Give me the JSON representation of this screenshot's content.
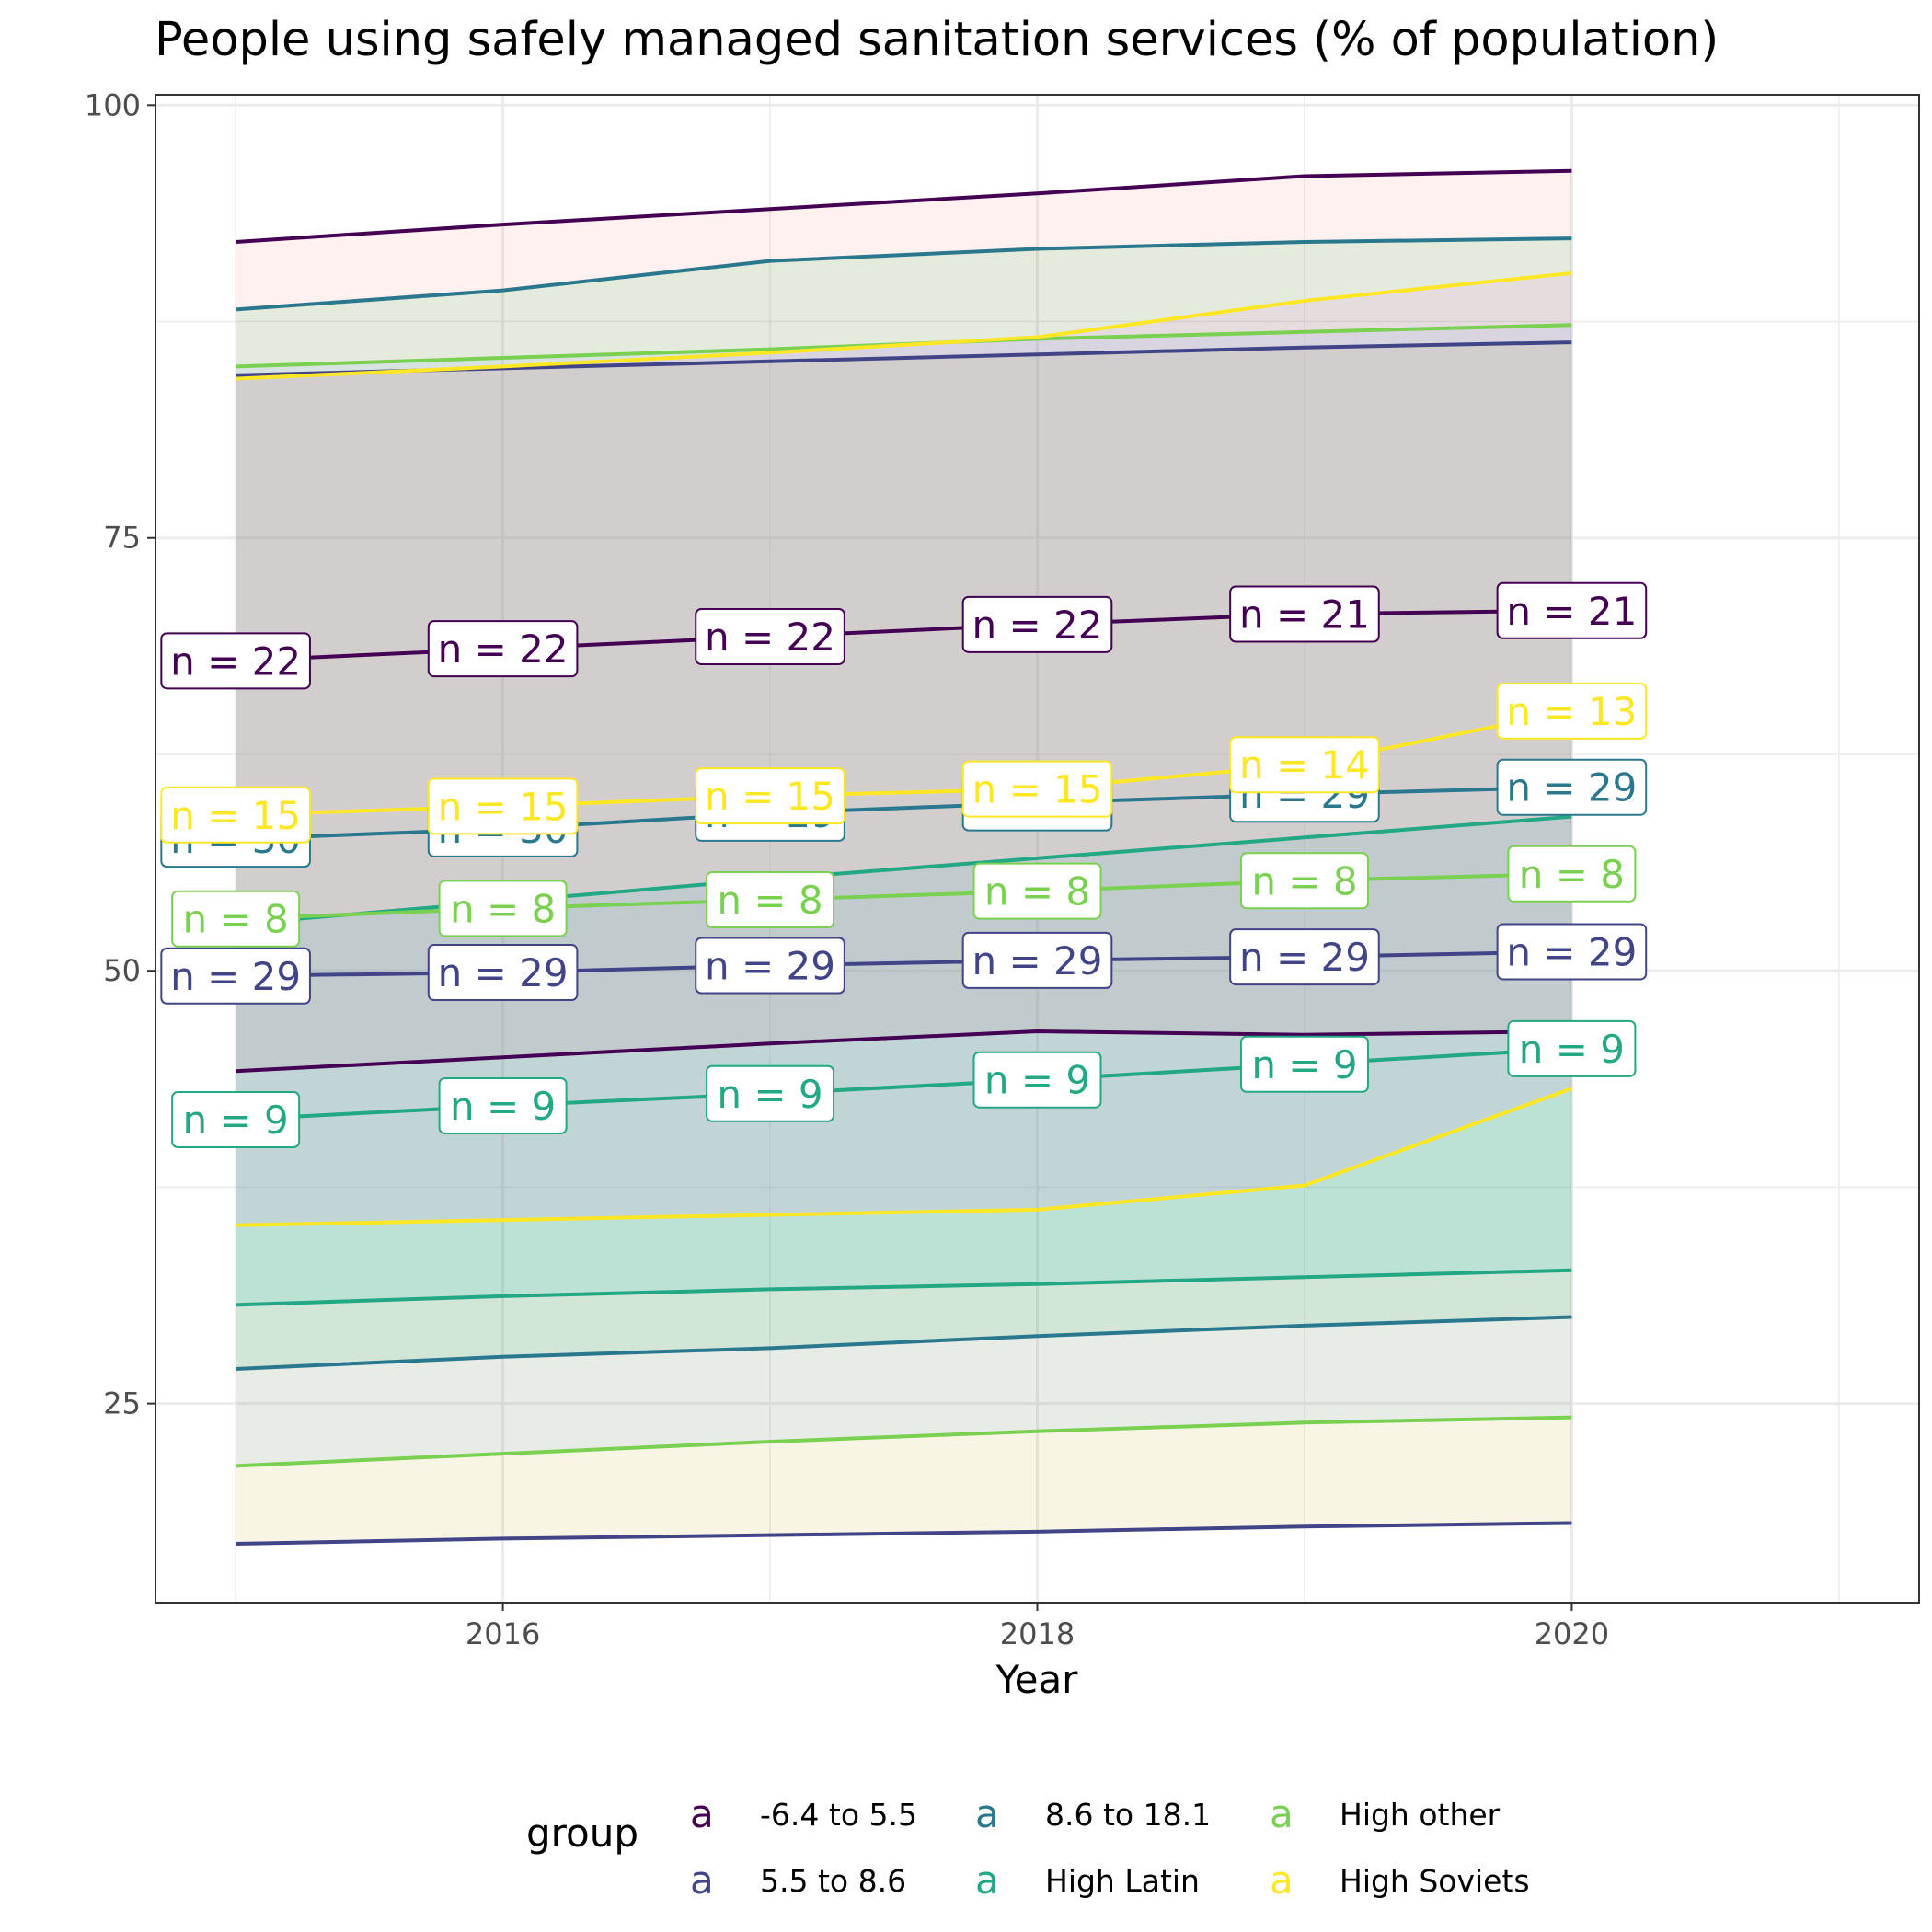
{
  "chart_data": {
    "type": "line",
    "title": "People using safely managed sanitation services (% of population)",
    "xlabel": "Year",
    "ylabel": "",
    "xlim": [
      2014.7,
      2021.3
    ],
    "ylim": [
      13.5,
      100.6
    ],
    "x_ticks": [
      2016,
      2018,
      2020
    ],
    "y_ticks": [
      25,
      50,
      75,
      100
    ],
    "x": [
      2015,
      2016,
      2017,
      2018,
      2019,
      2020
    ],
    "grid": true,
    "legend": {
      "title": "group",
      "position": "bottom",
      "key_glyph": "a"
    },
    "series": [
      {
        "name": "-6.4 to 5.5",
        "color": "#440154",
        "upper": [
          92.1,
          93.1,
          94.0,
          94.9,
          95.9,
          96.2
        ],
        "lower": [
          44.2,
          45.0,
          45.8,
          46.5,
          46.3,
          46.5
        ],
        "median": [
          67.9,
          68.6,
          69.3,
          70.0,
          70.6,
          70.8
        ],
        "n": [
          22,
          22,
          22,
          22,
          21,
          21
        ]
      },
      {
        "name": "5.5 to 8.6",
        "color": "#414487",
        "upper": [
          84.4,
          84.8,
          85.2,
          85.6,
          86.0,
          86.3
        ],
        "lower": [
          16.9,
          17.2,
          17.4,
          17.6,
          17.9,
          18.1
        ],
        "median": [
          49.7,
          49.9,
          50.3,
          50.6,
          50.8,
          51.1
        ],
        "n": [
          29,
          29,
          29,
          29,
          29,
          29
        ]
      },
      {
        "name": "8.6 to 18.1",
        "color": "#2a788e",
        "upper": [
          88.2,
          89.3,
          91.0,
          91.7,
          92.1,
          92.3
        ],
        "lower": [
          27.0,
          27.7,
          28.2,
          28.9,
          29.5,
          30.0
        ],
        "median": [
          57.6,
          58.2,
          59.1,
          59.7,
          60.2,
          60.6
        ],
        "n": [
          30,
          30,
          29,
          28,
          29,
          29
        ]
      },
      {
        "name": "High Latin",
        "color": "#22a884",
        "upper": [
          52.7,
          54.0,
          55.3,
          56.5,
          57.7,
          58.9
        ],
        "lower": [
          30.7,
          31.2,
          31.6,
          31.9,
          32.3,
          32.7
        ],
        "median": [
          41.4,
          42.2,
          42.9,
          43.7,
          44.6,
          45.5
        ],
        "n": [
          9,
          9,
          9,
          9,
          9,
          9
        ]
      },
      {
        "name": "High other",
        "color": "#7ad151",
        "upper": [
          84.9,
          85.4,
          85.9,
          86.5,
          86.9,
          87.3
        ],
        "lower": [
          21.4,
          22.1,
          22.8,
          23.4,
          23.9,
          24.2
        ],
        "median": [
          53.0,
          53.6,
          54.1,
          54.6,
          55.2,
          55.6
        ],
        "n": [
          8,
          8,
          8,
          8,
          8,
          8
        ]
      },
      {
        "name": "High Soviets",
        "color": "#fde725",
        "upper": [
          84.2,
          84.9,
          85.7,
          86.6,
          88.7,
          90.3
        ],
        "lower": [
          35.3,
          35.6,
          35.9,
          36.2,
          37.6,
          43.2
        ],
        "median": [
          59.0,
          59.5,
          60.1,
          60.5,
          61.9,
          65.0
        ],
        "n": [
          15,
          15,
          15,
          15,
          14,
          13
        ]
      }
    ]
  }
}
